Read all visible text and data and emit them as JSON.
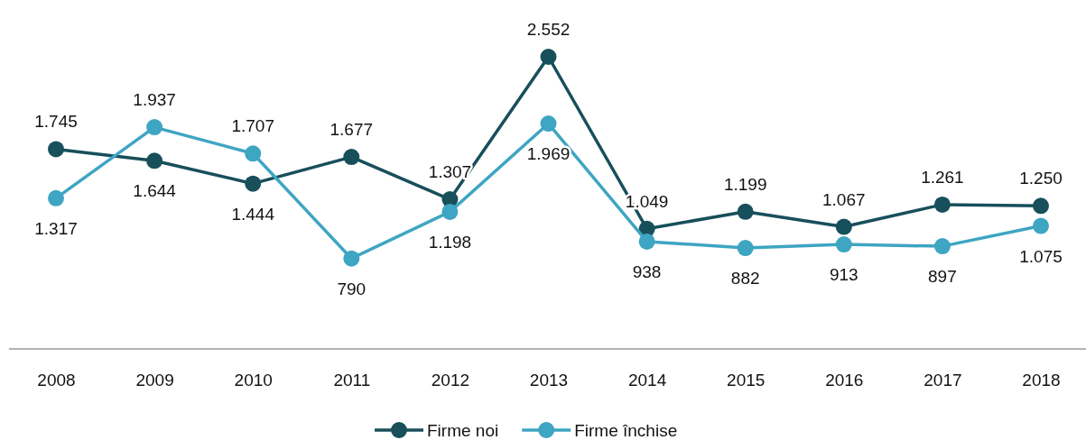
{
  "chart_data": {
    "type": "line",
    "categories": [
      "2008",
      "2009",
      "2010",
      "2011",
      "2012",
      "2013",
      "2014",
      "2015",
      "2016",
      "2017",
      "2018"
    ],
    "series": [
      {
        "name": "Firme noi",
        "color": "#174f5b",
        "values": [
          1745,
          1644,
          1444,
          1677,
          1307,
          2552,
          1049,
          1199,
          1067,
          1261,
          1250
        ],
        "value_labels": [
          "1.745",
          "1.644",
          "1.444",
          "1.677",
          "1.307",
          "2.552",
          "1.049",
          "1.199",
          "1.067",
          "1.261",
          "1.250"
        ]
      },
      {
        "name": "Firme închise",
        "color": "#3ea5c2",
        "values": [
          1317,
          1937,
          1707,
          790,
          1198,
          1969,
          938,
          882,
          913,
          897,
          1075
        ],
        "value_labels": [
          "1.317",
          "1.937",
          "1.707",
          "790",
          "1.198",
          "1.969",
          "938",
          "882",
          "913",
          "897",
          "1.075"
        ]
      }
    ],
    "tick_labels": "x",
    "marker": "circle",
    "line_style": "solid",
    "legend": "bottom"
  }
}
